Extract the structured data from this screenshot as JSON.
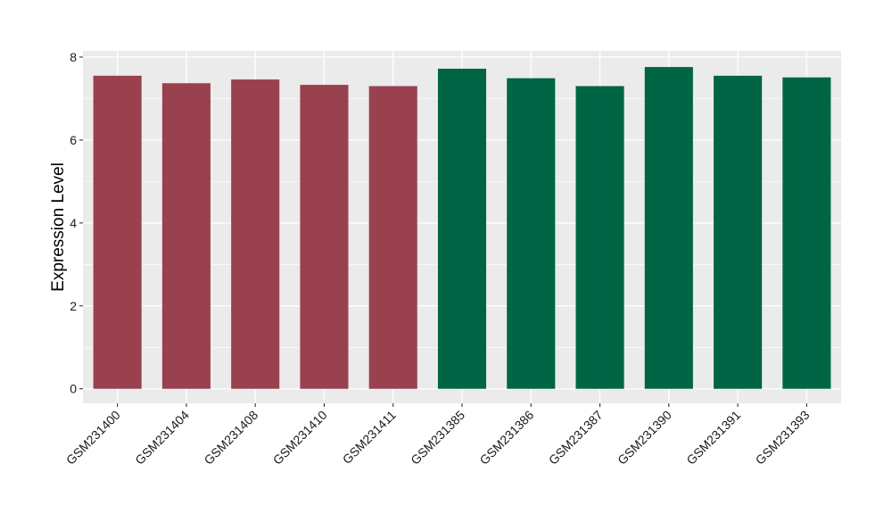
{
  "chart_data": {
    "type": "bar",
    "title": "",
    "xlabel": "",
    "ylabel": "Expression Level",
    "ylim": [
      -0.35,
      8.15
    ],
    "yticks": [
      0,
      2,
      4,
      6,
      8
    ],
    "grid": true,
    "legend": "none",
    "panel_background": "#ebebeb",
    "gridline_color": "#ffffff",
    "categories": [
      "GSM231400",
      "GSM231404",
      "GSM231408",
      "GSM231410",
      "GSM231411",
      "GSM231385",
      "GSM231386",
      "GSM231387",
      "GSM231390",
      "GSM231391",
      "GSM231393"
    ],
    "values": [
      7.55,
      7.37,
      7.46,
      7.33,
      7.3,
      7.72,
      7.49,
      7.3,
      7.76,
      7.55,
      7.51
    ],
    "bar_colors": [
      "#99414f",
      "#99414f",
      "#99414f",
      "#99414f",
      "#99414f",
      "#006544",
      "#006544",
      "#006544",
      "#006544",
      "#006544",
      "#006544"
    ]
  }
}
